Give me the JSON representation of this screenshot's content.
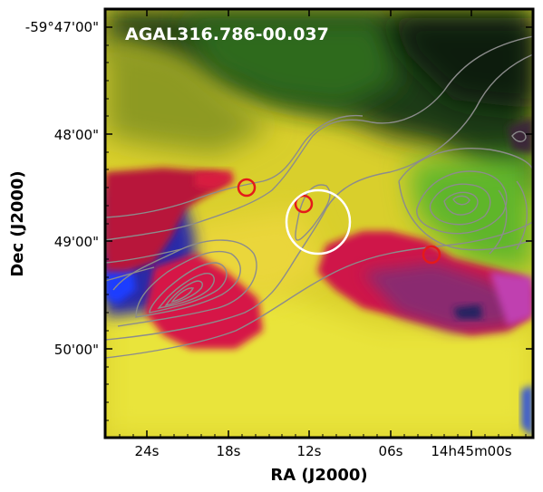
{
  "title": "AGAL316.786-00.037",
  "x_axis": {
    "label": "RA (J2000)",
    "ticks": [
      "24s",
      "18s",
      "12s",
      "06s",
      "14h45m00s"
    ]
  },
  "y_axis": {
    "label": "Dec (J2000)",
    "ticks": [
      "-59°47'00\"",
      "48'00\"",
      "49'00\"",
      "50'00\""
    ]
  },
  "colors": {
    "marker_small": "#e41a1a",
    "marker_large": "#ffffff",
    "contour": "#8c8c8c"
  }
}
